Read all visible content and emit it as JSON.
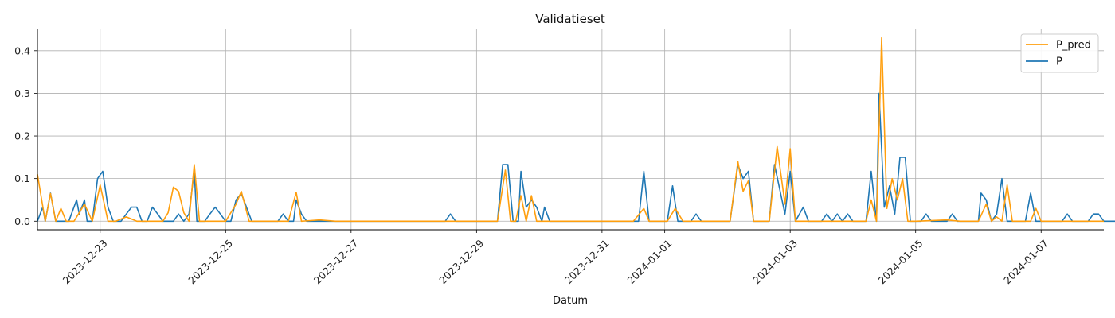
{
  "chart_data": {
    "type": "line",
    "title": "Validatieset",
    "xlabel": "Datum",
    "ylabel": "",
    "xlim": [
      "2023-12-22",
      "2024-01-08"
    ],
    "ylim": [
      -0.02,
      0.45
    ],
    "grid": true,
    "legend_position": "top-right",
    "x_tick_labels": [
      "2023-12-23",
      "2023-12-25",
      "2023-12-27",
      "2023-12-29",
      "2023-12-31",
      "2024-01-01",
      "2024-01-03",
      "2024-01-05",
      "2024-01-07"
    ],
    "y_tick_labels": [
      "0.0",
      "0.1",
      "0.2",
      "0.3",
      "0.4"
    ],
    "series": [
      {
        "name": "P_pred",
        "color": "#ff9f0e",
        "points": [
          [
            "2023-12-22 00:00",
            0.11
          ],
          [
            "2023-12-22 03:00",
            0.0
          ],
          [
            "2023-12-22 05:00",
            0.065
          ],
          [
            "2023-12-22 07:00",
            0.0
          ],
          [
            "2023-12-22 09:00",
            0.03
          ],
          [
            "2023-12-22 11:00",
            0.0
          ],
          [
            "2023-12-22 14:00",
            0.0
          ],
          [
            "2023-12-22 18:00",
            0.04
          ],
          [
            "2023-12-22 21:00",
            0.0
          ],
          [
            "2023-12-23 00:00",
            0.085
          ],
          [
            "2023-12-23 03:00",
            0.0
          ],
          [
            "2023-12-23 06:00",
            0.0
          ],
          [
            "2023-12-23 10:00",
            0.01
          ],
          [
            "2023-12-23 14:00",
            0.0
          ],
          [
            "2023-12-24 00:00",
            0.0
          ],
          [
            "2023-12-24 02:00",
            0.02
          ],
          [
            "2023-12-24 04:00",
            0.08
          ],
          [
            "2023-12-24 06:00",
            0.07
          ],
          [
            "2023-12-24 08:00",
            0.02
          ],
          [
            "2023-12-24 10:00",
            0.0
          ],
          [
            "2023-12-24 12:00",
            0.133
          ],
          [
            "2023-12-24 14:00",
            0.0
          ],
          [
            "2023-12-24 20:00",
            0.0
          ],
          [
            "2023-12-25 00:00",
            0.0
          ],
          [
            "2023-12-25 04:00",
            0.04
          ],
          [
            "2023-12-25 06:00",
            0.07
          ],
          [
            "2023-12-25 09:00",
            0.0
          ],
          [
            "2023-12-25 14:00",
            0.0
          ],
          [
            "2023-12-25 18:00",
            0.0
          ],
          [
            "2023-12-26 00:00",
            0.0
          ],
          [
            "2023-12-26 03:00",
            0.068
          ],
          [
            "2023-12-26 05:00",
            0.0
          ],
          [
            "2023-12-26 12:00",
            0.003
          ],
          [
            "2023-12-26 18:00",
            0.0
          ],
          [
            "2023-12-27 12:00",
            0.0
          ],
          [
            "2023-12-28 12:00",
            0.0
          ],
          [
            "2023-12-29 08:00",
            0.0
          ],
          [
            "2023-12-29 11:00",
            0.12
          ],
          [
            "2023-12-29 13:00",
            0.0
          ],
          [
            "2023-12-29 15:00",
            0.0
          ],
          [
            "2023-12-29 17:00",
            0.06
          ],
          [
            "2023-12-29 19:00",
            0.0
          ],
          [
            "2023-12-29 21:00",
            0.06
          ],
          [
            "2023-12-29 23:00",
            0.0
          ],
          [
            "2023-12-30 12:00",
            0.0
          ],
          [
            "2023-12-31 12:00",
            0.0
          ],
          [
            "2023-12-31 16:00",
            0.03
          ],
          [
            "2023-12-31 18:00",
            0.0
          ],
          [
            "2024-01-01 01:00",
            0.0
          ],
          [
            "2024-01-01 04:00",
            0.03
          ],
          [
            "2024-01-01 07:00",
            0.0
          ],
          [
            "2024-01-01 18:00",
            0.0
          ],
          [
            "2024-01-02 01:00",
            0.0
          ],
          [
            "2024-01-02 04:00",
            0.14
          ],
          [
            "2024-01-02 06:00",
            0.07
          ],
          [
            "2024-01-02 08:00",
            0.095
          ],
          [
            "2024-01-02 10:00",
            0.0
          ],
          [
            "2024-01-02 16:00",
            0.0
          ],
          [
            "2024-01-02 19:00",
            0.175
          ],
          [
            "2024-01-02 22:00",
            0.04
          ],
          [
            "2024-01-03 00:00",
            0.17
          ],
          [
            "2024-01-03 02:00",
            0.0
          ],
          [
            "2024-01-03 05:00",
            0.0
          ],
          [
            "2024-01-03 12:00",
            0.0
          ],
          [
            "2024-01-03 18:00",
            0.0
          ],
          [
            "2024-01-04 05:00",
            0.0
          ],
          [
            "2024-01-04 07:00",
            0.05
          ],
          [
            "2024-01-04 09:00",
            0.0
          ],
          [
            "2024-01-04 11:00",
            0.43
          ],
          [
            "2024-01-04 13:00",
            0.03
          ],
          [
            "2024-01-04 15:00",
            0.1
          ],
          [
            "2024-01-04 17:00",
            0.05
          ],
          [
            "2024-01-04 19:00",
            0.1
          ],
          [
            "2024-01-04 21:00",
            0.0
          ],
          [
            "2024-01-05 00:00",
            0.0
          ],
          [
            "2024-01-05 12:00",
            0.003
          ],
          [
            "2024-01-05 17:00",
            0.0
          ],
          [
            "2024-01-06 00:00",
            0.0
          ],
          [
            "2024-01-06 03:00",
            0.04
          ],
          [
            "2024-01-06 05:00",
            0.0
          ],
          [
            "2024-01-06 07:00",
            0.01
          ],
          [
            "2024-01-06 09:00",
            0.0
          ],
          [
            "2024-01-06 11:00",
            0.085
          ],
          [
            "2024-01-06 13:00",
            0.0
          ],
          [
            "2024-01-06 20:00",
            0.0
          ],
          [
            "2024-01-06 22:00",
            0.03
          ],
          [
            "2024-01-07 00:00",
            0.0
          ],
          [
            "2024-01-07 12:00",
            0.0
          ],
          [
            "2024-01-08 00:00",
            0.0
          ]
        ]
      },
      {
        "name": "P",
        "color": "#1f77b4",
        "points": [
          [
            "2023-12-22 00:00",
            0.0
          ],
          [
            "2023-12-22 02:00",
            0.033
          ],
          [
            "2023-12-22 03:00",
            0.0
          ],
          [
            "2023-12-22 05:00",
            0.066
          ],
          [
            "2023-12-22 07:00",
            0.0
          ],
          [
            "2023-12-22 12:00",
            0.0
          ],
          [
            "2023-12-22 13:00",
            0.017
          ],
          [
            "2023-12-22 15:00",
            0.05
          ],
          [
            "2023-12-22 16:00",
            0.017
          ],
          [
            "2023-12-22 18:00",
            0.05
          ],
          [
            "2023-12-22 19:00",
            0.0
          ],
          [
            "2023-12-22 21:00",
            0.0
          ],
          [
            "2023-12-22 23:00",
            0.1
          ],
          [
            "2023-12-23 01:00",
            0.117
          ],
          [
            "2023-12-23 03:00",
            0.033
          ],
          [
            "2023-12-23 05:00",
            0.0
          ],
          [
            "2023-12-23 08:00",
            0.0
          ],
          [
            "2023-12-23 10:00",
            0.017
          ],
          [
            "2023-12-23 12:00",
            0.033
          ],
          [
            "2023-12-23 14:00",
            0.033
          ],
          [
            "2023-12-23 16:00",
            0.0
          ],
          [
            "2023-12-23 18:00",
            0.0
          ],
          [
            "2023-12-23 20:00",
            0.033
          ],
          [
            "2023-12-23 22:00",
            0.017
          ],
          [
            "2023-12-24 00:00",
            0.0
          ],
          [
            "2023-12-24 04:00",
            0.0
          ],
          [
            "2023-12-24 06:00",
            0.017
          ],
          [
            "2023-12-24 08:00",
            0.0
          ],
          [
            "2023-12-24 10:00",
            0.017
          ],
          [
            "2023-12-24 12:00",
            0.117
          ],
          [
            "2023-12-24 13:00",
            0.0
          ],
          [
            "2023-12-24 16:00",
            0.0
          ],
          [
            "2023-12-24 18:00",
            0.017
          ],
          [
            "2023-12-24 20:00",
            0.033
          ],
          [
            "2023-12-24 22:00",
            0.017
          ],
          [
            "2023-12-25 00:00",
            0.0
          ],
          [
            "2023-12-25 02:00",
            0.0
          ],
          [
            "2023-12-25 04:00",
            0.05
          ],
          [
            "2023-12-25 06:00",
            0.065
          ],
          [
            "2023-12-25 08:00",
            0.033
          ],
          [
            "2023-12-25 10:00",
            0.0
          ],
          [
            "2023-12-25 20:00",
            0.0
          ],
          [
            "2023-12-25 22:00",
            0.017
          ],
          [
            "2023-12-26 00:00",
            0.0
          ],
          [
            "2023-12-26 02:00",
            0.0
          ],
          [
            "2023-12-26 03:00",
            0.05
          ],
          [
            "2023-12-26 05:00",
            0.017
          ],
          [
            "2023-12-26 07:00",
            0.0
          ],
          [
            "2023-12-27 00:00",
            0.0
          ],
          [
            "2023-12-28 12:00",
            0.0
          ],
          [
            "2023-12-28 14:00",
            0.017
          ],
          [
            "2023-12-28 16:00",
            0.0
          ],
          [
            "2023-12-29 08:00",
            0.0
          ],
          [
            "2023-12-29 10:00",
            0.133
          ],
          [
            "2023-12-29 12:00",
            0.133
          ],
          [
            "2023-12-29 14:00",
            0.0
          ],
          [
            "2023-12-29 16:00",
            0.0
          ],
          [
            "2023-12-29 17:00",
            0.117
          ],
          [
            "2023-12-29 19:00",
            0.033
          ],
          [
            "2023-12-29 21:00",
            0.05
          ],
          [
            "2023-12-29 23:00",
            0.033
          ],
          [
            "2023-12-30 01:00",
            0.0
          ],
          [
            "2023-12-30 02:00",
            0.033
          ],
          [
            "2023-12-30 04:00",
            0.0
          ],
          [
            "2023-12-31 12:00",
            0.0
          ],
          [
            "2023-12-31 14:00",
            0.0
          ],
          [
            "2023-12-31 16:00",
            0.117
          ],
          [
            "2023-12-31 18:00",
            0.0
          ],
          [
            "2024-01-01 01:00",
            0.0
          ],
          [
            "2024-01-01 03:00",
            0.083
          ],
          [
            "2024-01-01 05:00",
            0.0
          ],
          [
            "2024-01-01 10:00",
            0.0
          ],
          [
            "2024-01-01 12:00",
            0.017
          ],
          [
            "2024-01-01 14:00",
            0.0
          ],
          [
            "2024-01-02 01:00",
            0.0
          ],
          [
            "2024-01-02 04:00",
            0.133
          ],
          [
            "2024-01-02 06:00",
            0.1
          ],
          [
            "2024-01-02 08:00",
            0.117
          ],
          [
            "2024-01-02 10:00",
            0.0
          ],
          [
            "2024-01-02 16:00",
            0.0
          ],
          [
            "2024-01-02 18:00",
            0.133
          ],
          [
            "2024-01-02 22:00",
            0.017
          ],
          [
            "2024-01-03 00:00",
            0.117
          ],
          [
            "2024-01-03 02:00",
            0.0
          ],
          [
            "2024-01-03 05:00",
            0.033
          ],
          [
            "2024-01-03 07:00",
            0.0
          ],
          [
            "2024-01-03 12:00",
            0.0
          ],
          [
            "2024-01-03 14:00",
            0.017
          ],
          [
            "2024-01-03 16:00",
            0.0
          ],
          [
            "2024-01-03 18:00",
            0.017
          ],
          [
            "2024-01-03 20:00",
            0.0
          ],
          [
            "2024-01-03 22:00",
            0.017
          ],
          [
            "2024-01-04 00:00",
            0.0
          ],
          [
            "2024-01-04 05:00",
            0.0
          ],
          [
            "2024-01-04 07:00",
            0.117
          ],
          [
            "2024-01-04 09:00",
            0.0
          ],
          [
            "2024-01-04 10:00",
            0.3
          ],
          [
            "2024-01-04 12:00",
            0.033
          ],
          [
            "2024-01-04 14:00",
            0.083
          ],
          [
            "2024-01-04 16:00",
            0.017
          ],
          [
            "2024-01-04 18:00",
            0.15
          ],
          [
            "2024-01-04 20:00",
            0.15
          ],
          [
            "2024-01-04 22:00",
            0.0
          ],
          [
            "2024-01-05 02:00",
            0.0
          ],
          [
            "2024-01-05 04:00",
            0.017
          ],
          [
            "2024-01-05 06:00",
            0.0
          ],
          [
            "2024-01-05 12:00",
            0.0
          ],
          [
            "2024-01-05 14:00",
            0.017
          ],
          [
            "2024-01-05 16:00",
            0.0
          ],
          [
            "2024-01-06 00:00",
            0.0
          ],
          [
            "2024-01-06 01:00",
            0.066
          ],
          [
            "2024-01-06 03:00",
            0.05
          ],
          [
            "2024-01-06 05:00",
            0.0
          ],
          [
            "2024-01-06 07:00",
            0.017
          ],
          [
            "2024-01-06 09:00",
            0.1
          ],
          [
            "2024-01-06 11:00",
            0.0
          ],
          [
            "2024-01-06 18:00",
            0.0
          ],
          [
            "2024-01-06 20:00",
            0.066
          ],
          [
            "2024-01-06 22:00",
            0.0
          ],
          [
            "2024-01-07 08:00",
            0.0
          ],
          [
            "2024-01-07 10:00",
            0.017
          ],
          [
            "2024-01-07 12:00",
            0.0
          ],
          [
            "2024-01-07 18:00",
            0.0
          ],
          [
            "2024-01-07 20:00",
            0.017
          ],
          [
            "2024-01-07 22:00",
            0.017
          ],
          [
            "2024-01-08 00:00",
            0.0
          ],
          [
            "2024-01-08 06:00",
            0.0
          ],
          [
            "2024-01-08 08:00",
            0.017
          ],
          [
            "2024-01-08 10:00",
            0.0
          ],
          [
            "2024-01-08 12:00",
            0.0
          ]
        ]
      }
    ]
  }
}
